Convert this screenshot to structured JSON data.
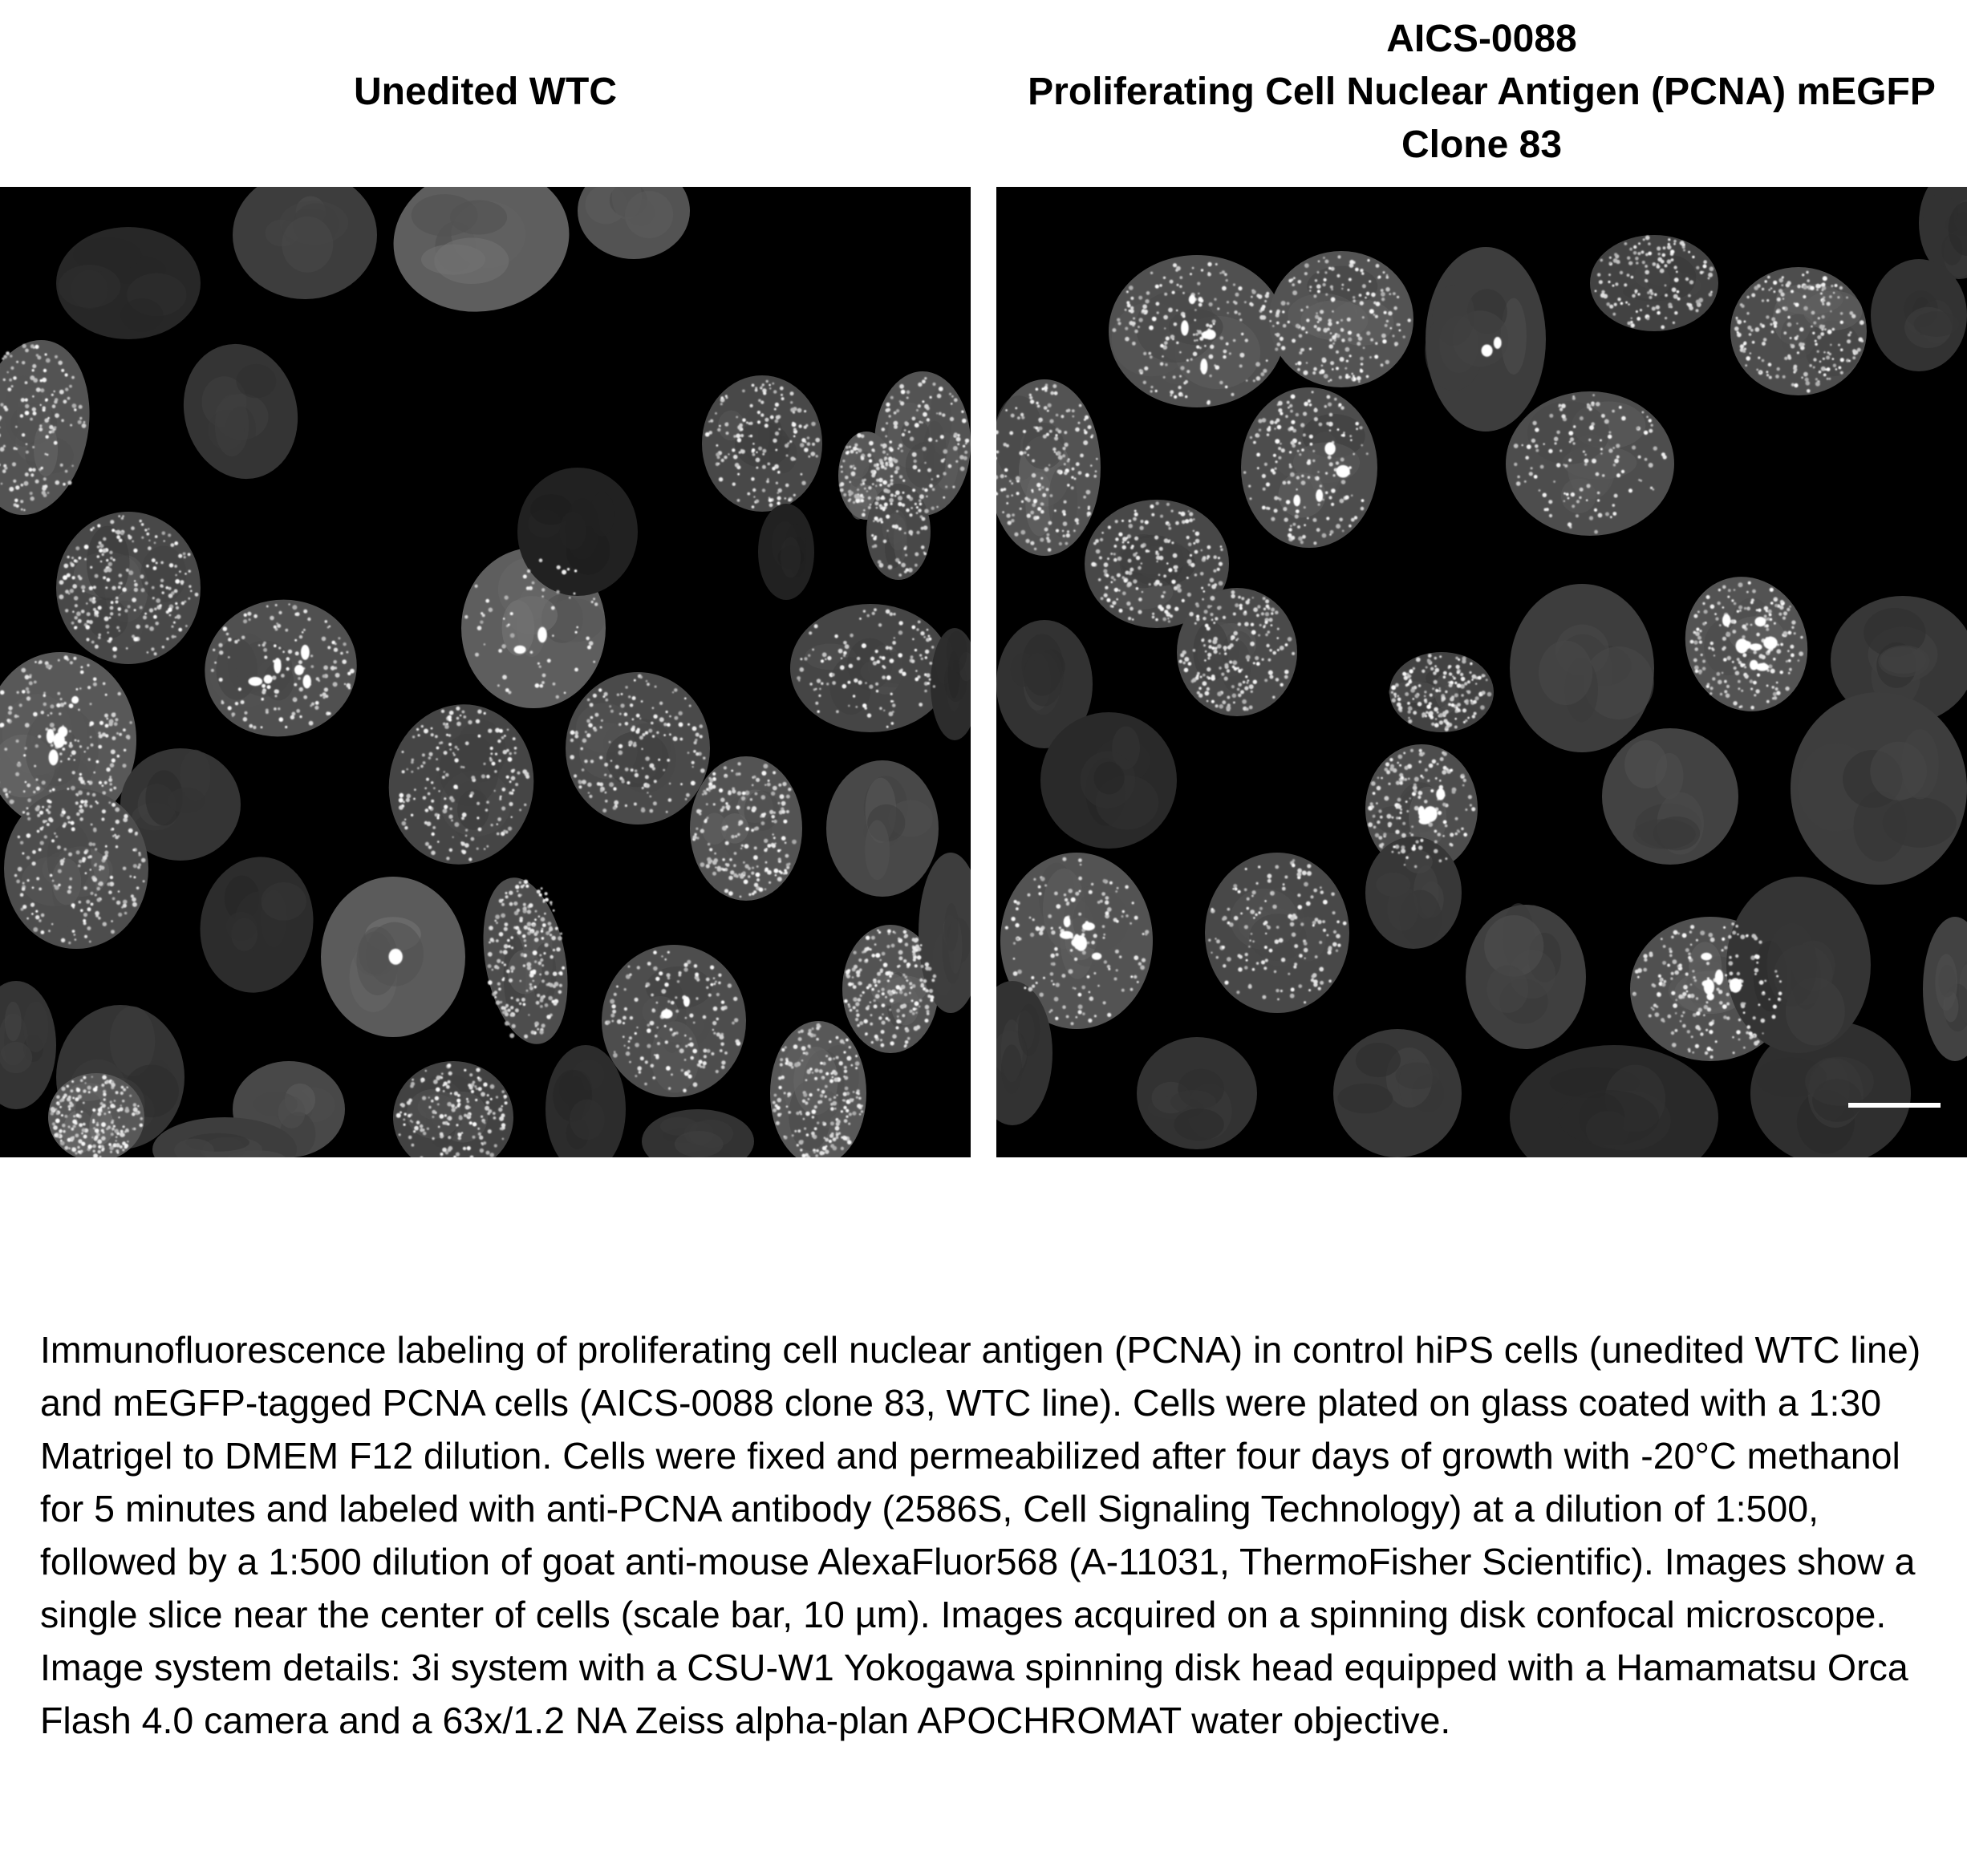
{
  "figure": {
    "left_panel": {
      "title_lines": [
        "Unedited WTC"
      ]
    },
    "right_panel": {
      "title_lines": [
        "AICS-0088",
        "Proliferating Cell Nuclear Antigen (PCNA) mEGFP",
        "Clone 83"
      ]
    },
    "caption": "Immunofluorescence labeling of proliferating cell nuclear antigen (PCNA) in control hiPS cells (unedited WTC line) and mEGFP-tagged PCNA cells (AICS-0088 clone 83, WTC line).  Cells were plated on glass coated with a 1:30 Matrigel to DMEM F12 dilution. Cells were fixed and permeabilized after four days of growth with -20°C methanol for 5 minutes and labeled with anti-PCNA antibody (2586S, Cell Signaling Technology) at a dilution of 1:500, followed by a 1:500 dilution of goat anti-mouse AlexaFluor568 (A-11031, ThermoFisher Scientific). Images show a single slice near the center of cells (scale bar, 10 µm). Images acquired on a spinning disk confocal microscope.  Image system details: 3i system with a CSU-W1 Yokogawa spinning disk head equipped with a Hamamatsu Orca Flash 4.0 camera and a 63x/1.2 NA Zeiss alpha-plan APOCHROMAT water objective.",
    "colors": {
      "background": "#ffffff",
      "micrograph_background": "#000000",
      "nucleus_fill": "#8a8a8a",
      "speckle": "#ffffff",
      "scale_bar": "#ffffff"
    }
  }
}
